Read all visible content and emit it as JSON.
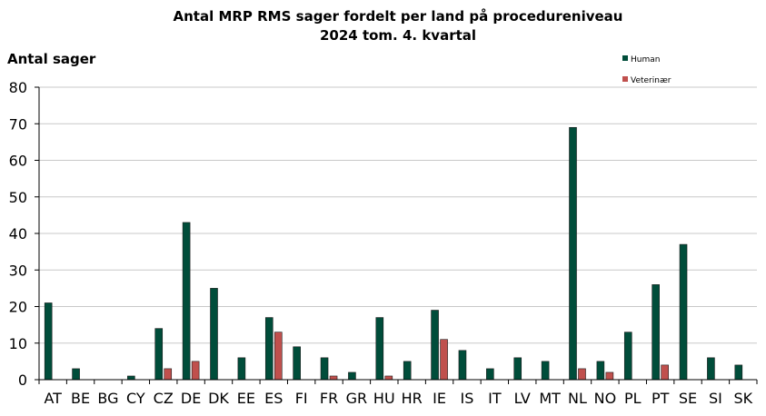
{
  "chart_data": {
    "type": "bar",
    "title": "Antal MRP RMS sager fordelt per land på procedureniveau",
    "subtitle": "2024 tom.  4. kvartal",
    "xlabel": "",
    "ylabel": "Antal sager",
    "ylim": [
      0,
      80
    ],
    "yticks": [
      0,
      10,
      20,
      30,
      40,
      50,
      60,
      70,
      80
    ],
    "grid": true,
    "legend_position": "top-right",
    "categories": [
      "AT",
      "BE",
      "BG",
      "CY",
      "CZ",
      "DE",
      "DK",
      "EE",
      "ES",
      "FI",
      "FR",
      "GR",
      "HU",
      "HR",
      "IE",
      "IS",
      "IT",
      "LV",
      "MT",
      "NL",
      "NO",
      "PL",
      "PT",
      "SE",
      "SI",
      "SK"
    ],
    "series": [
      {
        "name": "Human",
        "color": "#004d3a",
        "values": [
          21,
          3,
          0,
          1,
          14,
          43,
          25,
          6,
          17,
          9,
          6,
          2,
          17,
          5,
          19,
          8,
          3,
          6,
          5,
          69,
          5,
          13,
          26,
          37,
          6,
          4
        ]
      },
      {
        "name": "Veterinær",
        "color": "#c0504d",
        "values": [
          0,
          0,
          0,
          0,
          3,
          5,
          0,
          0,
          13,
          0,
          1,
          0,
          1,
          0,
          11,
          0,
          0,
          0,
          0,
          3,
          2,
          0,
          4,
          0,
          0,
          0
        ]
      }
    ]
  }
}
